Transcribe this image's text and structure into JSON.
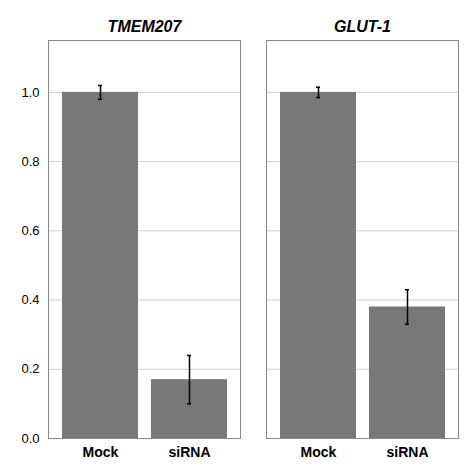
{
  "chart_data": {
    "type": "bar",
    "groups": [
      "TMEM207",
      "GLUT-1"
    ],
    "categories": [
      "Mock",
      "siRNA"
    ],
    "values": [
      [
        1.0,
        0.17
      ],
      [
        1.0,
        0.38
      ]
    ],
    "errors": [
      [
        0.02,
        0.07
      ],
      [
        0.015,
        0.05
      ]
    ],
    "color": "#787878",
    "ylim": [
      0,
      1.15
    ],
    "yticks": [
      {
        "value": 0,
        "label": "0.0"
      },
      0.2,
      0.4,
      0.6,
      0.8,
      {
        "value": 1.0,
        "label": "1.0"
      }
    ],
    "grid": true
  }
}
